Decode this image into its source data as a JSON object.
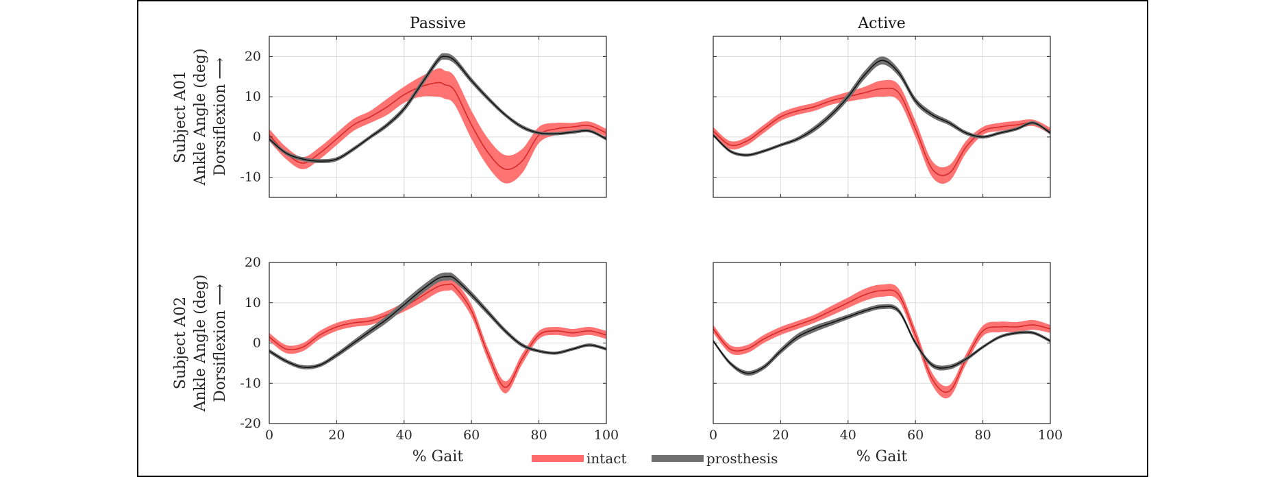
{
  "figure": {
    "arrow_glyph": "⟶"
  },
  "legend": [
    {
      "label": "intact",
      "color": "#ff6b6b"
    },
    {
      "label": "prosthesis",
      "color": "#707070"
    }
  ],
  "colors": {
    "intact_band": "#ff6b6b",
    "intact_line": "#d42a2a",
    "prosthesis_band": "#707070",
    "prosthesis_line": "#111111"
  },
  "chart_data": [
    {
      "type": "line",
      "title": "Passive",
      "ylabel": [
        "Subject A01",
        "Ankle Angle (deg)",
        "Dorsiflexion"
      ],
      "xlabel": "",
      "xlim": [
        0,
        100
      ],
      "ylim": [
        -15,
        25
      ],
      "xticks": [
        0,
        20,
        40,
        60,
        80,
        100
      ],
      "yticks": [
        -10,
        0,
        10,
        20
      ],
      "show_xtick_labels": false,
      "grid": true,
      "x": [
        0,
        5,
        10,
        15,
        20,
        25,
        30,
        35,
        40,
        45,
        50,
        52,
        55,
        60,
        65,
        70,
        75,
        80,
        85,
        90,
        95,
        100
      ],
      "series": [
        {
          "name": "intact",
          "mean": [
            0.5,
            -4,
            -6.5,
            -4,
            -0.5,
            3,
            5,
            7.5,
            10.5,
            12.5,
            13.5,
            13,
            11.5,
            3,
            -4,
            -8,
            -6,
            0.5,
            2,
            2.5,
            2.8,
            1
          ],
          "band": [
            1.5,
            1.5,
            1.5,
            1.5,
            1.5,
            1.5,
            1.5,
            2,
            2,
            2.5,
            3.5,
            3.5,
            3.5,
            3.5,
            3.5,
            3.5,
            3,
            2,
            1.5,
            1,
            1,
            1
          ]
        },
        {
          "name": "prosthesis",
          "mean": [
            -0.5,
            -4,
            -5.5,
            -6,
            -5.5,
            -3,
            0,
            3,
            7,
            13,
            19,
            20,
            19,
            14,
            9.5,
            5.5,
            2.5,
            1,
            0.8,
            1.2,
            1.5,
            -0.5
          ],
          "band": [
            0.5,
            0.5,
            0.5,
            0.5,
            0.5,
            0.5,
            0.5,
            0.6,
            0.7,
            0.8,
            0.8,
            0.8,
            0.8,
            0.7,
            0.6,
            0.5,
            0.5,
            0.4,
            0.4,
            0.4,
            0.4,
            0.4
          ]
        }
      ]
    },
    {
      "type": "line",
      "title": "Active",
      "ylabel": [],
      "xlabel": "",
      "xlim": [
        0,
        100
      ],
      "ylim": [
        -15,
        25
      ],
      "xticks": [
        0,
        20,
        40,
        60,
        80,
        100
      ],
      "yticks": [
        -10,
        0,
        10,
        20
      ],
      "show_xtick_labels": false,
      "grid": true,
      "x": [
        0,
        5,
        10,
        15,
        20,
        25,
        30,
        35,
        40,
        45,
        50,
        55,
        60,
        65,
        70,
        75,
        80,
        85,
        90,
        95,
        100
      ],
      "series": [
        {
          "name": "intact",
          "mean": [
            1.5,
            -2,
            -1,
            2,
            5,
            6.5,
            7.5,
            9,
            10,
            11,
            12,
            11,
            2,
            -8,
            -9,
            -2.5,
            1.5,
            2.5,
            3,
            3.5,
            1.5
          ],
          "band": [
            1,
            1,
            1,
            1,
            1,
            1,
            1,
            1,
            1.2,
            1.5,
            2,
            2,
            2,
            2,
            2,
            1.5,
            1,
            1,
            1,
            0.8,
            0.8
          ]
        },
        {
          "name": "prosthesis",
          "mean": [
            0.5,
            -3.5,
            -4.5,
            -3.5,
            -2,
            -0.5,
            2,
            5.5,
            10,
            15.5,
            19,
            16,
            9,
            5.5,
            3.5,
            1,
            0,
            1,
            2,
            3.5,
            1
          ],
          "band": [
            0.4,
            0.4,
            0.4,
            0.4,
            0.4,
            0.5,
            0.7,
            0.8,
            0.9,
            1,
            1,
            0.9,
            0.8,
            0.7,
            0.6,
            0.5,
            0.4,
            0.4,
            0.4,
            0.4,
            0.4
          ]
        }
      ]
    },
    {
      "type": "line",
      "title": "",
      "ylabel": [
        "Subject A02",
        "Ankle Angle (deg)",
        "Dorsiflexion"
      ],
      "xlabel": "% Gait",
      "xlim": [
        0,
        100
      ],
      "ylim": [
        -20,
        20
      ],
      "xticks": [
        0,
        20,
        40,
        60,
        80,
        100
      ],
      "yticks": [
        -20,
        -10,
        0,
        10,
        20
      ],
      "show_xtick_labels": true,
      "grid": true,
      "x": [
        0,
        5,
        10,
        15,
        20,
        25,
        30,
        35,
        40,
        45,
        50,
        53,
        55,
        60,
        65,
        70,
        75,
        80,
        85,
        90,
        95,
        100
      ],
      "series": [
        {
          "name": "intact",
          "mean": [
            1.5,
            -1.5,
            -1,
            2,
            4,
            5,
            5.5,
            7,
            9,
            11.5,
            14,
            14.5,
            14,
            8,
            -3,
            -11,
            -4,
            2,
            3,
            2.5,
            3,
            2
          ],
          "band": [
            1,
            1,
            1,
            1,
            1,
            1,
            1,
            1,
            1.2,
            1.5,
            1.5,
            1.5,
            1.5,
            1.5,
            1.5,
            1.5,
            1.3,
            1,
            1,
            1,
            1,
            1
          ]
        },
        {
          "name": "prosthesis",
          "mean": [
            -2,
            -4.5,
            -6,
            -5.5,
            -3,
            0,
            3,
            6,
            9.5,
            13,
            16,
            16.5,
            16,
            12,
            7.5,
            3,
            -0.5,
            -2,
            -2.5,
            -1.5,
            -0.5,
            -1.5
          ],
          "band": [
            0.5,
            0.5,
            0.5,
            0.5,
            0.6,
            0.7,
            0.8,
            0.9,
            1,
            1,
            1,
            1,
            0.9,
            0.8,
            0.7,
            0.6,
            0.5,
            0.4,
            0.4,
            0.4,
            0.4,
            0.4
          ]
        }
      ]
    },
    {
      "type": "line",
      "title": "",
      "ylabel": [],
      "xlabel": "% Gait",
      "xlim": [
        0,
        100
      ],
      "ylim": [
        -20,
        20
      ],
      "xticks": [
        0,
        20,
        40,
        60,
        80,
        100
      ],
      "yticks": [
        -20,
        -10,
        0,
        10,
        20
      ],
      "show_xtick_labels": true,
      "grid": true,
      "x": [
        0,
        5,
        10,
        15,
        20,
        25,
        30,
        35,
        40,
        45,
        50,
        55,
        60,
        65,
        70,
        75,
        80,
        85,
        90,
        95,
        100
      ],
      "series": [
        {
          "name": "intact",
          "mean": [
            3.5,
            -1.5,
            -1.5,
            1,
            3,
            4.5,
            6,
            8,
            10,
            12,
            13,
            12,
            2,
            -9,
            -12,
            -4,
            3,
            4,
            4,
            4.5,
            3.5
          ],
          "band": [
            1,
            1,
            1,
            1,
            1,
            1,
            1,
            1.2,
            1.3,
            1.5,
            1.5,
            1.5,
            1.5,
            1.5,
            1.5,
            1.3,
            1.3,
            1.3,
            1.2,
            1.2,
            1
          ]
        },
        {
          "name": "prosthesis",
          "mean": [
            0.5,
            -5,
            -7.5,
            -6,
            -2,
            1.5,
            3.5,
            5,
            6.5,
            8,
            9,
            8,
            0,
            -5.5,
            -6,
            -4,
            -1,
            1.5,
            2.5,
            2.5,
            0.5
          ],
          "band": [
            0.4,
            0.5,
            0.6,
            0.6,
            0.7,
            0.8,
            0.8,
            0.7,
            0.6,
            0.6,
            0.6,
            0.6,
            0.6,
            0.6,
            0.6,
            0.5,
            0.4,
            0.4,
            0.4,
            0.4,
            0.4
          ]
        }
      ]
    }
  ]
}
